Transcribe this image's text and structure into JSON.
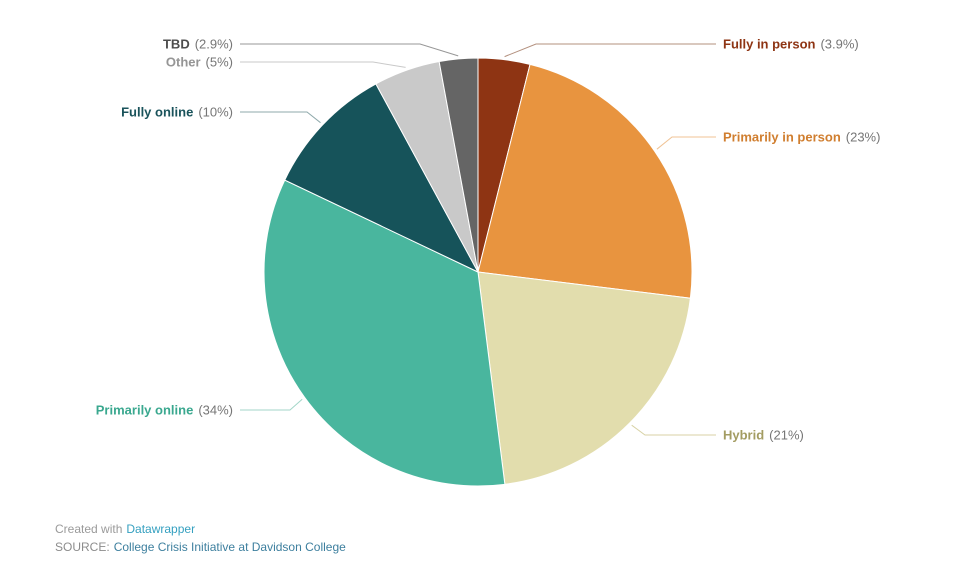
{
  "chart_data": {
    "type": "pie",
    "title": "",
    "legend_position": "none",
    "direction": "clockwise",
    "start_angle_deg": 0,
    "percent_text_color": "#767676",
    "slice_stroke_color": "#ffffff",
    "slices": [
      {
        "label": "Fully in person",
        "value": 3.9,
        "display": "Fully in person (3.9%)",
        "color": "#8e3413",
        "label_color": "#8e3413",
        "leader_color": "#b3907e"
      },
      {
        "label": "Primarily in person",
        "value": 23,
        "display": "Primarily in person (23%)",
        "color": "#e8943f",
        "label_color": "#d07e2f",
        "leader_color": "#f0c395"
      },
      {
        "label": "Hybrid",
        "value": 21,
        "display": "Hybrid (21%)",
        "color": "#e2ddad",
        "label_color": "#a39c62",
        "leader_color": "#d8d2a5"
      },
      {
        "label": "Primarily online",
        "value": 34,
        "display": "Primarily online (34%)",
        "color": "#49b69e",
        "label_color": "#3aa88f",
        "leader_color": "#a3d6c8"
      },
      {
        "label": "Fully online",
        "value": 10,
        "display": "Fully online (10%)",
        "color": "#16535a",
        "label_color": "#1a535b",
        "leader_color": "#8fa9ab"
      },
      {
        "label": "Other",
        "value": 5,
        "display": "Other (5%)",
        "color": "#c9c9c9",
        "label_color": "#959595",
        "leader_color": "#c9c9c9"
      },
      {
        "label": "TBD",
        "value": 2.9,
        "display": "TBD (2.9%)",
        "color": "#656565",
        "label_color": "#4d4d4d",
        "leader_color": "#979797"
      }
    ]
  },
  "footer": {
    "created_with": "Created with",
    "datawrapper_link": "Datawrapper",
    "source_label": "SOURCE:",
    "source_link": "College Crisis Initiative at Davidson College",
    "colors": {
      "created_with": "#9a9a9a",
      "datawrapper_link": "#35a0c0",
      "source_label": "#8c8c8c",
      "source_link": "#3d7f9e"
    }
  }
}
